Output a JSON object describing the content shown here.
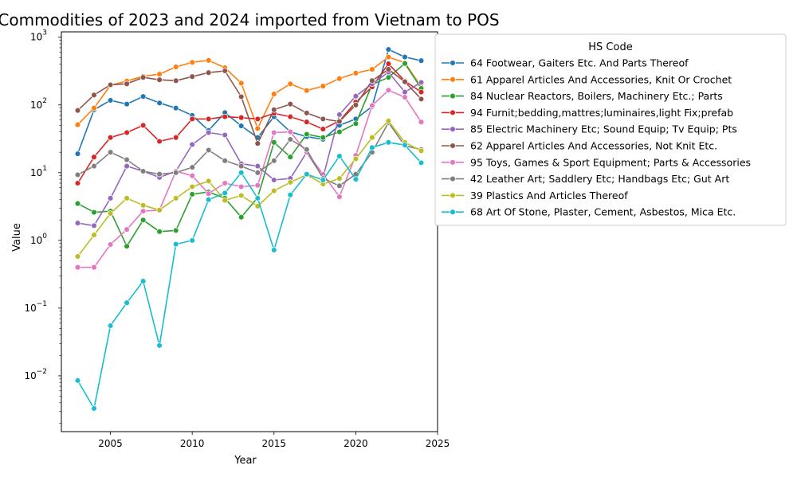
{
  "chart_data": {
    "type": "line",
    "title": "Commodities of 2023 and 2024 imported from Vietnam to POS",
    "xlabel": "Year",
    "ylabel": "Value",
    "yscale": "log",
    "xlim": [
      2002,
      2025
    ],
    "ylim": [
      0.0015,
      1200
    ],
    "xticks": [
      2005,
      2010,
      2015,
      2020,
      2025
    ],
    "yticks": [
      {
        "value": 0.01,
        "base": "10",
        "exp": "−2"
      },
      {
        "value": 0.1,
        "base": "10",
        "exp": "−1"
      },
      {
        "value": 1,
        "base": "10",
        "exp": "0"
      },
      {
        "value": 10,
        "base": "10",
        "exp": "1"
      },
      {
        "value": 100,
        "base": "10",
        "exp": "2"
      },
      {
        "value": 1000,
        "base": "10",
        "exp": "3"
      }
    ],
    "legend": {
      "title": "HS Code",
      "placement": "outside-right"
    },
    "x": [
      2003,
      2004,
      2005,
      2006,
      2007,
      2008,
      2009,
      2010,
      2011,
      2012,
      2013,
      2014,
      2015,
      2016,
      2017,
      2018,
      2019,
      2020,
      2021,
      2022,
      2023,
      2024
    ],
    "series": [
      {
        "name": "64 Footwear, Gaiters Etc. And Parts Thereof",
        "color": "#1f77b4",
        "values": [
          19,
          85,
          117,
          103,
          133,
          107,
          90,
          70,
          42,
          77,
          49,
          33,
          67,
          40,
          34,
          31,
          50,
          62,
          95,
          660,
          510,
          450
        ]
      },
      {
        "name": "61 Apparel Articles And Accessories, Knit Or Crochet",
        "color": "#ff7f0e",
        "values": [
          51,
          90,
          195,
          225,
          265,
          285,
          365,
          425,
          455,
          355,
          210,
          45,
          145,
          205,
          163,
          190,
          245,
          295,
          335,
          510,
          420,
          185
        ]
      },
      {
        "name": "84 Nuclear Reactors, Boilers, Machinery Etc.; Parts",
        "color": "#2ca02c",
        "values": [
          3.5,
          2.6,
          2.7,
          0.82,
          2.0,
          1.35,
          1.4,
          4.8,
          5.2,
          4.2,
          2.2,
          4.3,
          28,
          17,
          37,
          33,
          40,
          53,
          200,
          255,
          410,
          175
        ]
      },
      {
        "name": "94 Furnit;bedding,mattres;luminaires,light Fix;prefab",
        "color": "#d62728",
        "values": [
          7,
          17,
          33,
          39,
          50,
          29,
          33,
          62,
          62,
          67,
          65,
          62,
          75,
          67,
          56,
          44,
          58,
          110,
          185,
          405,
          225,
          155
        ]
      },
      {
        "name": "85 Electric Machinery Etc; Sound Equip; Tv Equip; Pts",
        "color": "#9467bd",
        "values": [
          1.8,
          1.65,
          4.2,
          12.5,
          10.5,
          8.5,
          10.5,
          26,
          39,
          36,
          13.5,
          12.5,
          7.8,
          8.2,
          20,
          8.5,
          72,
          135,
          205,
          305,
          155,
          215
        ]
      },
      {
        "name": "62 Apparel Articles And Accessories, Not Knit Etc.",
        "color": "#8c564b",
        "values": [
          83,
          140,
          198,
          205,
          255,
          235,
          228,
          262,
          300,
          318,
          132,
          27,
          85,
          103,
          76,
          62,
          57,
          100,
          228,
          335,
          220,
          122
        ]
      },
      {
        "name": "95 Toys, Games & Sport Equipment; Parts & Accessories",
        "color": "#e377c2",
        "values": [
          0.4,
          0.4,
          0.87,
          1.45,
          2.7,
          2.8,
          10.5,
          9,
          4.9,
          7,
          6.2,
          6.5,
          39,
          40,
          20,
          9.5,
          4.4,
          18,
          98,
          165,
          130,
          56
        ]
      },
      {
        "name": "42 Leather Art; Saddlery Etc; Handbags Etc; Gut Art",
        "color": "#7f7f7f",
        "values": [
          9.3,
          12.5,
          20,
          15.5,
          10.5,
          9.5,
          10,
          12,
          21.5,
          15,
          12.5,
          10,
          15,
          31,
          22,
          8.2,
          6.4,
          9.5,
          20,
          55,
          25,
          22
        ]
      },
      {
        "name": "39 Plastics And Articles Thereof",
        "color": "#bcbd22",
        "values": [
          0.58,
          1.2,
          2.5,
          4.2,
          3.3,
          2.8,
          4.2,
          6.2,
          7.5,
          3.9,
          4.6,
          3.2,
          5.4,
          7.2,
          9.3,
          6.8,
          8.2,
          16,
          33,
          58,
          28,
          21
        ]
      },
      {
        "name": "68 Art Of Stone, Plaster, Cement, Asbestos, Mica Etc.",
        "color": "#17becf",
        "values": [
          0.0085,
          0.0033,
          0.055,
          0.12,
          0.25,
          0.028,
          0.88,
          1.0,
          4.0,
          5.0,
          10,
          4.2,
          0.72,
          4.7,
          9.5,
          7.8,
          17.5,
          8,
          23.5,
          28,
          25.5,
          14
        ]
      }
    ]
  }
}
